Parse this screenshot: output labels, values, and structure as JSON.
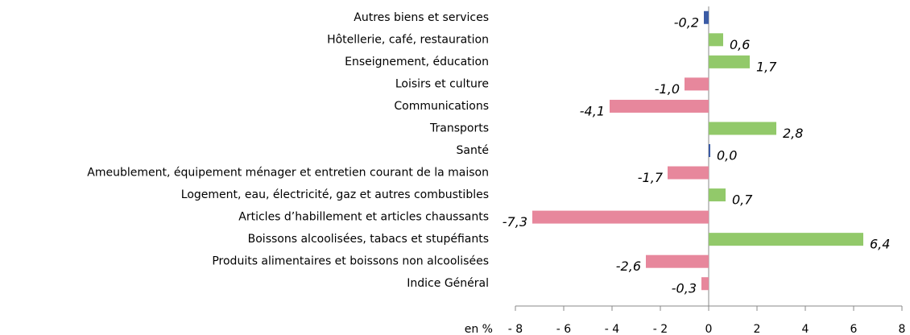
{
  "chart_data": {
    "type": "bar",
    "orientation": "horizontal",
    "categories": [
      "Autres biens et services",
      "Hôtellerie, café, restauration",
      "Enseignement, éducation",
      "Loisirs et culture",
      "Communications",
      "Transports",
      "Santé",
      "Ameublement, équipement ménager et entretien courant de la maison",
      "Logement, eau, électricité, gaz et autres combustibles",
      "Articles d’habillement et articles chaussants",
      "Boissons alcoolisées, tabacs et stupéfiants",
      "Produits alimentaires et boissons non alcoolisées",
      "Indice Général"
    ],
    "values": [
      -0.2,
      0.6,
      1.7,
      -1.0,
      -4.1,
      2.8,
      0.0,
      -1.7,
      0.7,
      -7.3,
      6.4,
      -2.6,
      -0.3
    ],
    "value_labels": [
      "-0,2",
      "0,6",
      "1,7",
      "-1,0",
      "-4,1",
      "2,8",
      "0,0",
      "-1,7",
      "0,7",
      "-7,3",
      "6,4",
      "-2,6",
      "-0,3"
    ],
    "colors": [
      "#3b5ba5",
      "#92c96a",
      "#92c96a",
      "#e7879c",
      "#e7879c",
      "#92c96a",
      "#3b5ba5",
      "#e7879c",
      "#92c96a",
      "#e7879c",
      "#92c96a",
      "#e7879c",
      "#e7879c"
    ],
    "xlabel": "en %",
    "xlim": [
      -8,
      8
    ],
    "xticks": [
      {
        "value": -8,
        "label": "- 8"
      },
      {
        "value": -6,
        "label": "- 6"
      },
      {
        "value": -4,
        "label": "- 4"
      },
      {
        "value": -2,
        "label": "- 2"
      },
      0,
      2,
      4,
      6,
      8
    ]
  }
}
